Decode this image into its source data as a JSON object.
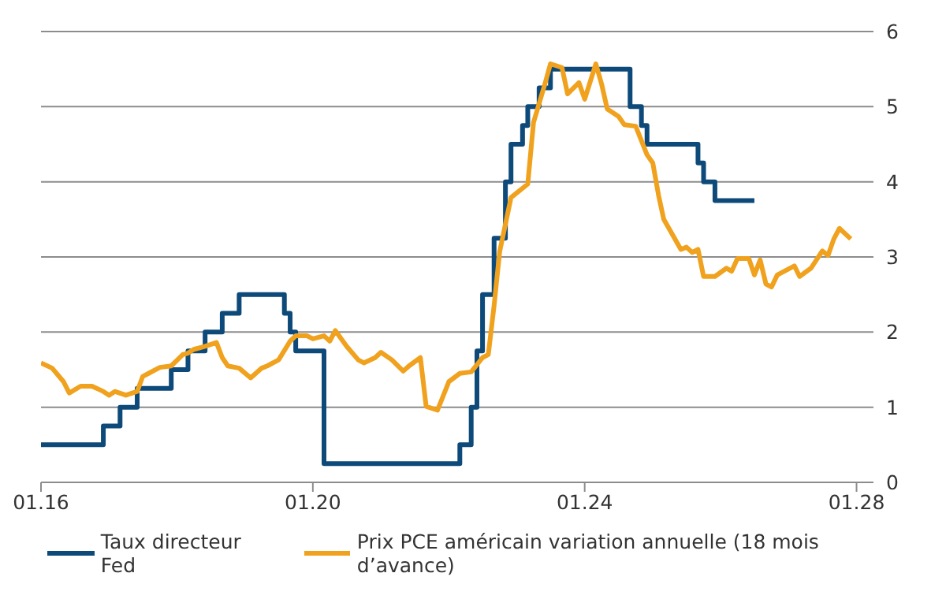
{
  "chart_data": {
    "type": "line",
    "xlim": [
      "2016-01",
      "2028-04"
    ],
    "xticks": [
      {
        "value": "2016-01",
        "label": "01.16"
      },
      {
        "value": "2020-01",
        "label": "01.20"
      },
      {
        "value": "2024-01",
        "label": "01.24"
      },
      {
        "value": "2028-01",
        "label": "01.28"
      }
    ],
    "ylim": [
      0,
      6
    ],
    "yticks": [
      0,
      1,
      2,
      3,
      4,
      5,
      6
    ],
    "grid": "y",
    "legend": "bottom",
    "marker": "none",
    "series": [
      {
        "name": "Taux directeur Fed",
        "type": "step",
        "color": "#0d4a7a",
        "x": [
          "2016-01",
          "2016-12",
          "2017-03",
          "2017-06",
          "2017-12",
          "2018-03",
          "2018-06",
          "2018-09",
          "2018-12",
          "2019-08",
          "2019-09",
          "2019-10",
          "2020-03",
          "2022-03",
          "2022-05",
          "2022-06",
          "2022-07",
          "2022-09",
          "2022-11",
          "2022-12",
          "2023-02",
          "2023-03",
          "2023-05",
          "2023-07",
          "2024-09",
          "2024-11",
          "2024-12",
          "2025-09",
          "2025-10",
          "2025-12",
          "2026-07"
        ],
        "values": [
          0.5,
          0.75,
          1.0,
          1.25,
          1.5,
          1.75,
          2.0,
          2.25,
          2.5,
          2.25,
          2.0,
          1.75,
          0.25,
          0.5,
          1.0,
          1.75,
          2.5,
          3.25,
          4.0,
          4.5,
          4.75,
          5.0,
          5.25,
          5.5,
          5.0,
          4.75,
          4.5,
          4.25,
          4.0,
          3.75,
          3.75
        ]
      },
      {
        "name": "Prix PCE américain variation annuelle (18 mois d’avance)",
        "type": "line",
        "color": "#f0a21e",
        "x": [
          "2016-01",
          "2016-03",
          "2016-05",
          "2016-06",
          "2016-08",
          "2016-10",
          "2016-12",
          "2017-01",
          "2017-02",
          "2017-04",
          "2017-06",
          "2017-07",
          "2017-08",
          "2017-10",
          "2017-12",
          "2018-02",
          "2018-03",
          "2018-04",
          "2018-06",
          "2018-08",
          "2018-09",
          "2018-10",
          "2018-12",
          "2019-02",
          "2019-04",
          "2019-05",
          "2019-07",
          "2019-09",
          "2019-10",
          "2019-12",
          "2020-01",
          "2020-03",
          "2020-04",
          "2020-05",
          "2020-07",
          "2020-09",
          "2020-10",
          "2020-12",
          "2021-01",
          "2021-03",
          "2021-05",
          "2021-06",
          "2021-08",
          "2021-09",
          "2021-11",
          "2022-01",
          "2022-03",
          "2022-05",
          "2022-07",
          "2022-08",
          "2022-09",
          "2022-10",
          "2022-12",
          "2023-03",
          "2023-04",
          "2023-06",
          "2023-07",
          "2023-09",
          "2023-10",
          "2023-12",
          "2024-01",
          "2024-03",
          "2024-04",
          "2024-05",
          "2024-07",
          "2024-08",
          "2024-10",
          "2024-12",
          "2025-01",
          "2025-02",
          "2025-03",
          "2025-06",
          "2025-07",
          "2025-08",
          "2025-09",
          "2025-10",
          "2025-12",
          "2026-02",
          "2026-03",
          "2026-04",
          "2026-06",
          "2026-07",
          "2026-08",
          "2026-09",
          "2026-10",
          "2026-11",
          "2027-02",
          "2027-03",
          "2027-05",
          "2027-07",
          "2027-08",
          "2027-09",
          "2027-10",
          "2027-12"
        ],
        "values": [
          1.59,
          1.52,
          1.34,
          1.19,
          1.28,
          1.28,
          1.21,
          1.16,
          1.21,
          1.16,
          1.21,
          1.41,
          1.45,
          1.53,
          1.55,
          1.7,
          1.72,
          1.77,
          1.81,
          1.86,
          1.66,
          1.55,
          1.52,
          1.39,
          1.52,
          1.55,
          1.63,
          1.88,
          1.95,
          1.95,
          1.91,
          1.95,
          1.88,
          2.02,
          1.81,
          1.63,
          1.59,
          1.66,
          1.73,
          1.63,
          1.48,
          1.55,
          1.66,
          1.01,
          0.96,
          1.34,
          1.45,
          1.47,
          1.66,
          1.7,
          2.35,
          3.07,
          3.79,
          3.97,
          4.79,
          5.3,
          5.57,
          5.52,
          5.17,
          5.32,
          5.1,
          5.57,
          5.3,
          4.97,
          4.87,
          4.76,
          4.74,
          4.36,
          4.25,
          3.82,
          3.5,
          3.1,
          3.13,
          3.06,
          3.1,
          2.74,
          2.74,
          2.85,
          2.81,
          2.98,
          2.98,
          2.76,
          2.96,
          2.64,
          2.6,
          2.76,
          2.88,
          2.74,
          2.85,
          3.08,
          3.02,
          3.24,
          3.38,
          3.24
        ]
      }
    ]
  }
}
